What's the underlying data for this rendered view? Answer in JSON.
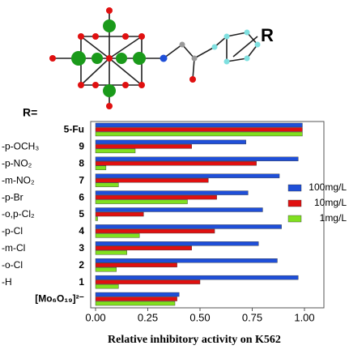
{
  "chart_data": {
    "type": "bar",
    "orientation": "horizontal",
    "molecule_label": "R",
    "r_prefix": "R=",
    "categories": [
      "5-Fu",
      "9",
      "8",
      "7",
      "6",
      "5",
      "4",
      "3",
      "2",
      "1",
      "[Mo₆O₁₉]²⁻"
    ],
    "r_groups": [
      "-p-OCH₃",
      "-p-NO₂",
      "-m-NO₂",
      "-p-Br",
      "-o,p-Cl₂",
      "-p-Cl",
      "-m-Cl",
      "-o-Cl",
      "-H"
    ],
    "series": [
      {
        "name": "100mg/L",
        "color": "#1f4fd8",
        "values": [
          0.99,
          0.72,
          0.97,
          0.88,
          0.73,
          0.8,
          0.89,
          0.78,
          0.87,
          0.97,
          0.4
        ]
      },
      {
        "name": "10mg/L",
        "color": "#e01010",
        "values": [
          0.99,
          0.46,
          0.77,
          0.54,
          0.58,
          0.23,
          0.57,
          0.46,
          0.39,
          0.5,
          0.39
        ]
      },
      {
        "name": "1mg/L",
        "color": "#80e020",
        "values": [
          0.99,
          0.19,
          0.05,
          0.11,
          0.44,
          0.01,
          0.21,
          0.15,
          0.1,
          0.11,
          0.38
        ]
      }
    ],
    "xlim": [
      0,
      1.1
    ],
    "xticks": [
      {
        "value": 0,
        "label": "0.00"
      },
      {
        "value": 0.25,
        "label": "0.25"
      },
      {
        "value": 0.5,
        "label": "0.50"
      },
      {
        "value": 0.75,
        "label": "0.75"
      },
      {
        "value": 1,
        "label": "1.00"
      }
    ],
    "xlabel": "Relative inhibitory activity on K562",
    "legend": "right"
  }
}
